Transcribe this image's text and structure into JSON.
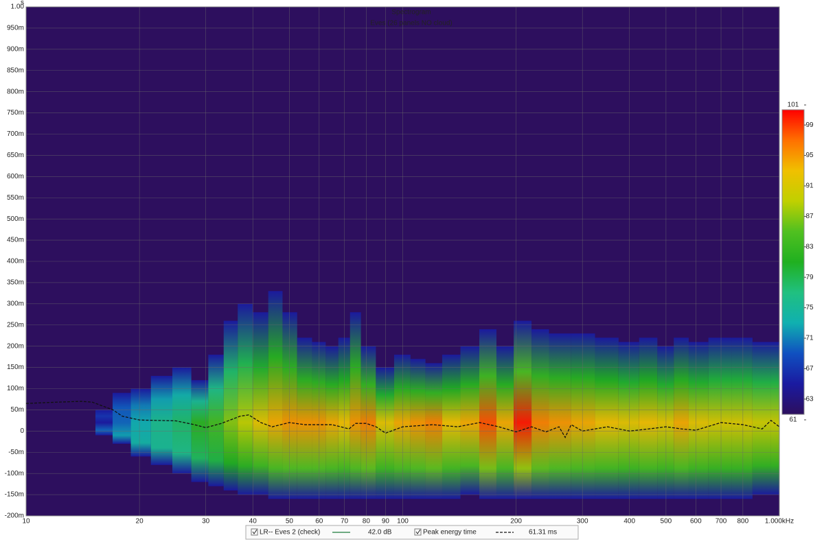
{
  "chart_data": {
    "type": "spectrogram",
    "title": "Spectrogram",
    "subtitle": "Eves (26 panels NO cloud)",
    "y_unit": "s",
    "xscale": "log",
    "xlim": [
      10,
      1000
    ],
    "ylim": [
      -0.2,
      1.0
    ],
    "grid": true,
    "xticks": [
      10,
      20,
      30,
      40,
      50,
      60,
      70,
      80,
      90,
      100,
      200,
      300,
      400,
      500,
      600,
      700,
      800,
      {
        "value": 1000,
        "label": "1.000kHz"
      }
    ],
    "yticks": [
      {
        "value": -0.2,
        "label": "-200m"
      },
      {
        "value": -0.15,
        "label": "-150m"
      },
      {
        "value": -0.1,
        "label": "-100m"
      },
      {
        "value": -0.05,
        "label": "-50m"
      },
      0,
      {
        "value": 0.05,
        "label": "50m"
      },
      {
        "value": 0.1,
        "label": "100m"
      },
      {
        "value": 0.15,
        "label": "150m"
      },
      {
        "value": 0.2,
        "label": "200m"
      },
      {
        "value": 0.25,
        "label": "250m"
      },
      {
        "value": 0.3,
        "label": "300m"
      },
      {
        "value": 0.35,
        "label": "350m"
      },
      {
        "value": 0.4,
        "label": "400m"
      },
      {
        "value": 0.45,
        "label": "450m"
      },
      {
        "value": 0.5,
        "label": "500m"
      },
      {
        "value": 0.55,
        "label": "550m"
      },
      {
        "value": 0.6,
        "label": "600m"
      },
      {
        "value": 0.65,
        "label": "650m"
      },
      {
        "value": 0.7,
        "label": "700m"
      },
      {
        "value": 0.75,
        "label": "750m"
      },
      {
        "value": 0.8,
        "label": "800m"
      },
      {
        "value": 0.85,
        "label": "850m"
      },
      {
        "value": 0.9,
        "label": "900m"
      },
      {
        "value": 0.95,
        "label": "950m"
      },
      {
        "value": 1.0,
        "label": "1.00"
      }
    ],
    "colorscale": {
      "lim": [
        61,
        101
      ],
      "ticks": [
        61,
        63,
        67,
        71,
        75,
        79,
        83,
        87,
        91,
        95,
        99,
        101
      ],
      "colors": [
        "#2d0f5e",
        "#1a1aa0",
        "#1050c0",
        "#10b0b0",
        "#20c080",
        "#20b020",
        "#50c020",
        "#c0d000",
        "#f0c000",
        "#ff7000",
        "#ff0000"
      ]
    },
    "heatmap": {
      "x": [
        16,
        18,
        20,
        23,
        26,
        29,
        32,
        35,
        38,
        42,
        46,
        50,
        55,
        60,
        65,
        70,
        75,
        80,
        90,
        100,
        110,
        120,
        135,
        150,
        170,
        185,
        210,
        230,
        260,
        300,
        350,
        400,
        450,
        500,
        550,
        600,
        700,
        800,
        900,
        1000
      ],
      "top": [
        0.05,
        0.09,
        0.1,
        0.13,
        0.15,
        0.12,
        0.18,
        0.26,
        0.3,
        0.28,
        0.33,
        0.28,
        0.22,
        0.21,
        0.2,
        0.22,
        0.28,
        0.2,
        0.15,
        0.18,
        0.17,
        0.16,
        0.18,
        0.2,
        0.24,
        0.2,
        0.26,
        0.24,
        0.23,
        0.23,
        0.22,
        0.21,
        0.22,
        0.2,
        0.22,
        0.21,
        0.22,
        0.22,
        0.21,
        0.21
      ],
      "bottom": [
        -0.01,
        -0.03,
        -0.06,
        -0.08,
        -0.1,
        -0.12,
        -0.13,
        -0.14,
        -0.15,
        -0.15,
        -0.16,
        -0.16,
        -0.16,
        -0.16,
        -0.16,
        -0.16,
        -0.16,
        -0.16,
        -0.16,
        -0.16,
        -0.16,
        -0.16,
        -0.16,
        -0.15,
        -0.16,
        -0.16,
        -0.16,
        -0.16,
        -0.16,
        -0.16,
        -0.16,
        -0.16,
        -0.16,
        -0.16,
        -0.16,
        -0.16,
        -0.16,
        -0.16,
        -0.15,
        -0.15
      ],
      "peak": [
        65,
        70,
        73,
        76,
        78,
        82,
        84,
        87,
        89,
        92,
        94,
        95,
        95,
        95,
        94,
        93,
        95,
        96,
        92,
        94,
        95,
        96,
        93,
        94,
        98,
        94,
        100,
        96,
        95,
        94,
        93,
        92,
        93,
        92,
        94,
        92,
        91,
        91,
        90,
        90
      ]
    },
    "series": [
      {
        "name": "Peak energy time",
        "color": "#111111",
        "x": [
          10,
          12,
          14,
          15,
          17,
          18,
          20,
          25,
          28,
          30,
          33,
          37,
          39,
          42,
          45,
          50,
          55,
          65,
          72,
          75,
          80,
          85,
          90,
          100,
          120,
          140,
          160,
          180,
          200,
          220,
          240,
          260,
          270,
          280,
          300,
          350,
          400,
          450,
          500,
          550,
          600,
          700,
          800,
          900,
          950,
          1000
        ],
        "values": [
          0.065,
          0.068,
          0.07,
          0.068,
          0.05,
          0.035,
          0.026,
          0.024,
          0.015,
          0.008,
          0.018,
          0.035,
          0.038,
          0.02,
          0.01,
          0.02,
          0.015,
          0.015,
          0.005,
          0.018,
          0.018,
          0.01,
          -0.005,
          0.01,
          0.015,
          0.01,
          0.02,
          0.01,
          -0.002,
          0.01,
          -0.002,
          0.01,
          -0.015,
          0.015,
          0,
          0.01,
          0,
          0.005,
          0.01,
          0.005,
          0.002,
          0.02,
          0.015,
          0.005,
          0.025,
          0.01
        ]
      }
    ],
    "legend": [
      {
        "label": "LR-- Eves 2 (check)",
        "readout": "42.0 dB",
        "color": "#1a7a3a"
      },
      {
        "label": "Peak energy time",
        "readout": "61.31 ms",
        "color": "#111111"
      }
    ]
  }
}
